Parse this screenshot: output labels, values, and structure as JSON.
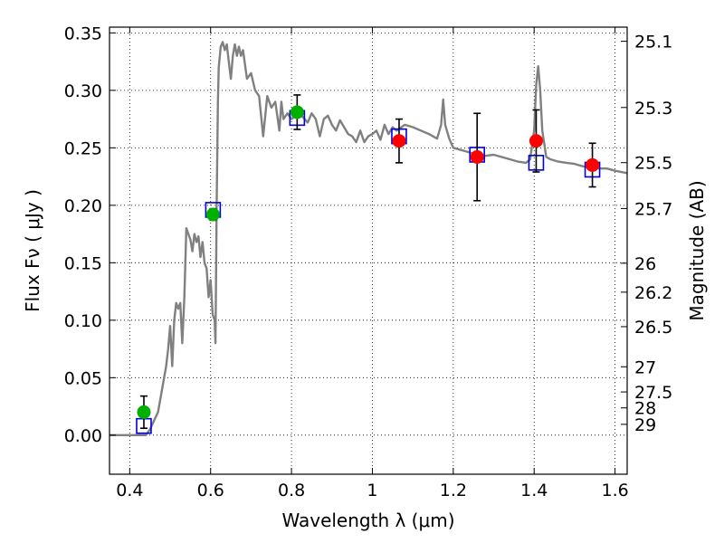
{
  "chart_data": {
    "type": "scatter",
    "xlabel": "Wavelength  λ (μm)",
    "ylabel": "Flux  Fν  ( μJy )",
    "y2label": "Magnitude (AB)",
    "xlim": [
      0.35,
      1.63
    ],
    "ylim": [
      -0.034,
      0.355
    ],
    "x_ticks": [
      0.4,
      0.6,
      0.8,
      1.0,
      1.2,
      1.4,
      1.6
    ],
    "x_tick_labels": [
      "0.4",
      "0.6",
      "0.8",
      "1",
      "1.2",
      "1.4",
      "1.6"
    ],
    "y_ticks": [
      0.0,
      0.05,
      0.1,
      0.15,
      0.2,
      0.25,
      0.3,
      0.35
    ],
    "y_tick_labels": [
      "0.00",
      "0.05",
      "0.10",
      "0.15",
      "0.20",
      "0.25",
      "0.30",
      "0.35"
    ],
    "mag_ticks": [
      {
        "label": "25.1",
        "flux": 0.3427
      },
      {
        "label": "25.3",
        "flux": 0.2851
      },
      {
        "label": "25.5",
        "flux": 0.2371
      },
      {
        "label": "25.7",
        "flux": 0.1972
      },
      {
        "label": "26",
        "flux": 0.1496
      },
      {
        "label": "26.2",
        "flux": 0.1244
      },
      {
        "label": "26.5",
        "flux": 0.0944
      },
      {
        "label": "27",
        "flux": 0.0595
      },
      {
        "label": "27.5",
        "flux": 0.0376
      },
      {
        "label": "28",
        "flux": 0.0237
      },
      {
        "label": "29",
        "flux": 0.0094
      }
    ],
    "grid": true,
    "colors": {
      "model": "#808080",
      "observed_green": "#00b000",
      "observed_red": "#ff0000",
      "model_box": "#0000dd",
      "errorbar": "#000000"
    },
    "model_spectrum": {
      "x": [
        0.35,
        0.44,
        0.45,
        0.47,
        0.48,
        0.49,
        0.495,
        0.5,
        0.505,
        0.51,
        0.515,
        0.52,
        0.525,
        0.53,
        0.535,
        0.54,
        0.55,
        0.555,
        0.56,
        0.565,
        0.57,
        0.575,
        0.58,
        0.585,
        0.59,
        0.595,
        0.6,
        0.605,
        0.61,
        0.612,
        0.615,
        0.618,
        0.62,
        0.625,
        0.63,
        0.635,
        0.64,
        0.645,
        0.65,
        0.655,
        0.66,
        0.665,
        0.67,
        0.675,
        0.68,
        0.69,
        0.7,
        0.71,
        0.72,
        0.73,
        0.74,
        0.75,
        0.76,
        0.77,
        0.775,
        0.78,
        0.79,
        0.8,
        0.81,
        0.82,
        0.83,
        0.84,
        0.85,
        0.86,
        0.87,
        0.88,
        0.89,
        0.9,
        0.91,
        0.92,
        0.93,
        0.94,
        0.95,
        0.96,
        0.97,
        0.98,
        0.99,
        1.0,
        1.01,
        1.02,
        1.03,
        1.04,
        1.05,
        1.06,
        1.08,
        1.1,
        1.12,
        1.14,
        1.16,
        1.17,
        1.175,
        1.18,
        1.19,
        1.2,
        1.22,
        1.24,
        1.26,
        1.28,
        1.3,
        1.32,
        1.34,
        1.36,
        1.38,
        1.39,
        1.4,
        1.405,
        1.41,
        1.415,
        1.42,
        1.43,
        1.44,
        1.46,
        1.48,
        1.5,
        1.52,
        1.54,
        1.56,
        1.58,
        1.6,
        1.63
      ],
      "y": [
        0.0,
        0.0,
        0.005,
        0.02,
        0.04,
        0.06,
        0.075,
        0.095,
        0.06,
        0.1,
        0.115,
        0.11,
        0.115,
        0.08,
        0.12,
        0.18,
        0.17,
        0.16,
        0.175,
        0.168,
        0.173,
        0.155,
        0.168,
        0.15,
        0.145,
        0.12,
        0.135,
        0.105,
        0.1,
        0.08,
        0.2,
        0.29,
        0.32,
        0.338,
        0.342,
        0.335,
        0.34,
        0.325,
        0.31,
        0.33,
        0.34,
        0.33,
        0.338,
        0.33,
        0.335,
        0.31,
        0.315,
        0.3,
        0.295,
        0.26,
        0.295,
        0.285,
        0.29,
        0.265,
        0.29,
        0.275,
        0.28,
        0.275,
        0.278,
        0.28,
        0.276,
        0.272,
        0.28,
        0.275,
        0.26,
        0.275,
        0.278,
        0.27,
        0.265,
        0.274,
        0.268,
        0.262,
        0.26,
        0.255,
        0.265,
        0.255,
        0.26,
        0.262,
        0.265,
        0.257,
        0.27,
        0.262,
        0.268,
        0.265,
        0.27,
        0.268,
        0.265,
        0.262,
        0.258,
        0.27,
        0.292,
        0.27,
        0.258,
        0.25,
        0.248,
        0.246,
        0.244,
        0.243,
        0.244,
        0.242,
        0.24,
        0.238,
        0.237,
        0.24,
        0.265,
        0.305,
        0.321,
        0.3,
        0.265,
        0.242,
        0.24,
        0.238,
        0.237,
        0.236,
        0.234,
        0.233,
        0.232,
        0.232,
        0.23,
        0.228
      ]
    },
    "observations": [
      {
        "x": 0.435,
        "y": 0.02,
        "err": 0.014,
        "color": "green",
        "model": 0.008
      },
      {
        "x": 0.606,
        "y": 0.192,
        "err": 0.005,
        "color": "green",
        "model": 0.196
      },
      {
        "x": 0.814,
        "y": 0.281,
        "err": 0.015,
        "color": "green",
        "model": 0.276
      },
      {
        "x": 1.066,
        "y": 0.256,
        "err": 0.019,
        "color": "red",
        "model": 0.26
      },
      {
        "x": 1.259,
        "y": 0.242,
        "err": 0.038,
        "color": "red",
        "model": 0.244
      },
      {
        "x": 1.405,
        "y": 0.256,
        "err": 0.027,
        "color": "red",
        "model": 0.237
      },
      {
        "x": 1.544,
        "y": 0.235,
        "err": 0.019,
        "color": "red",
        "model": 0.231
      }
    ]
  }
}
